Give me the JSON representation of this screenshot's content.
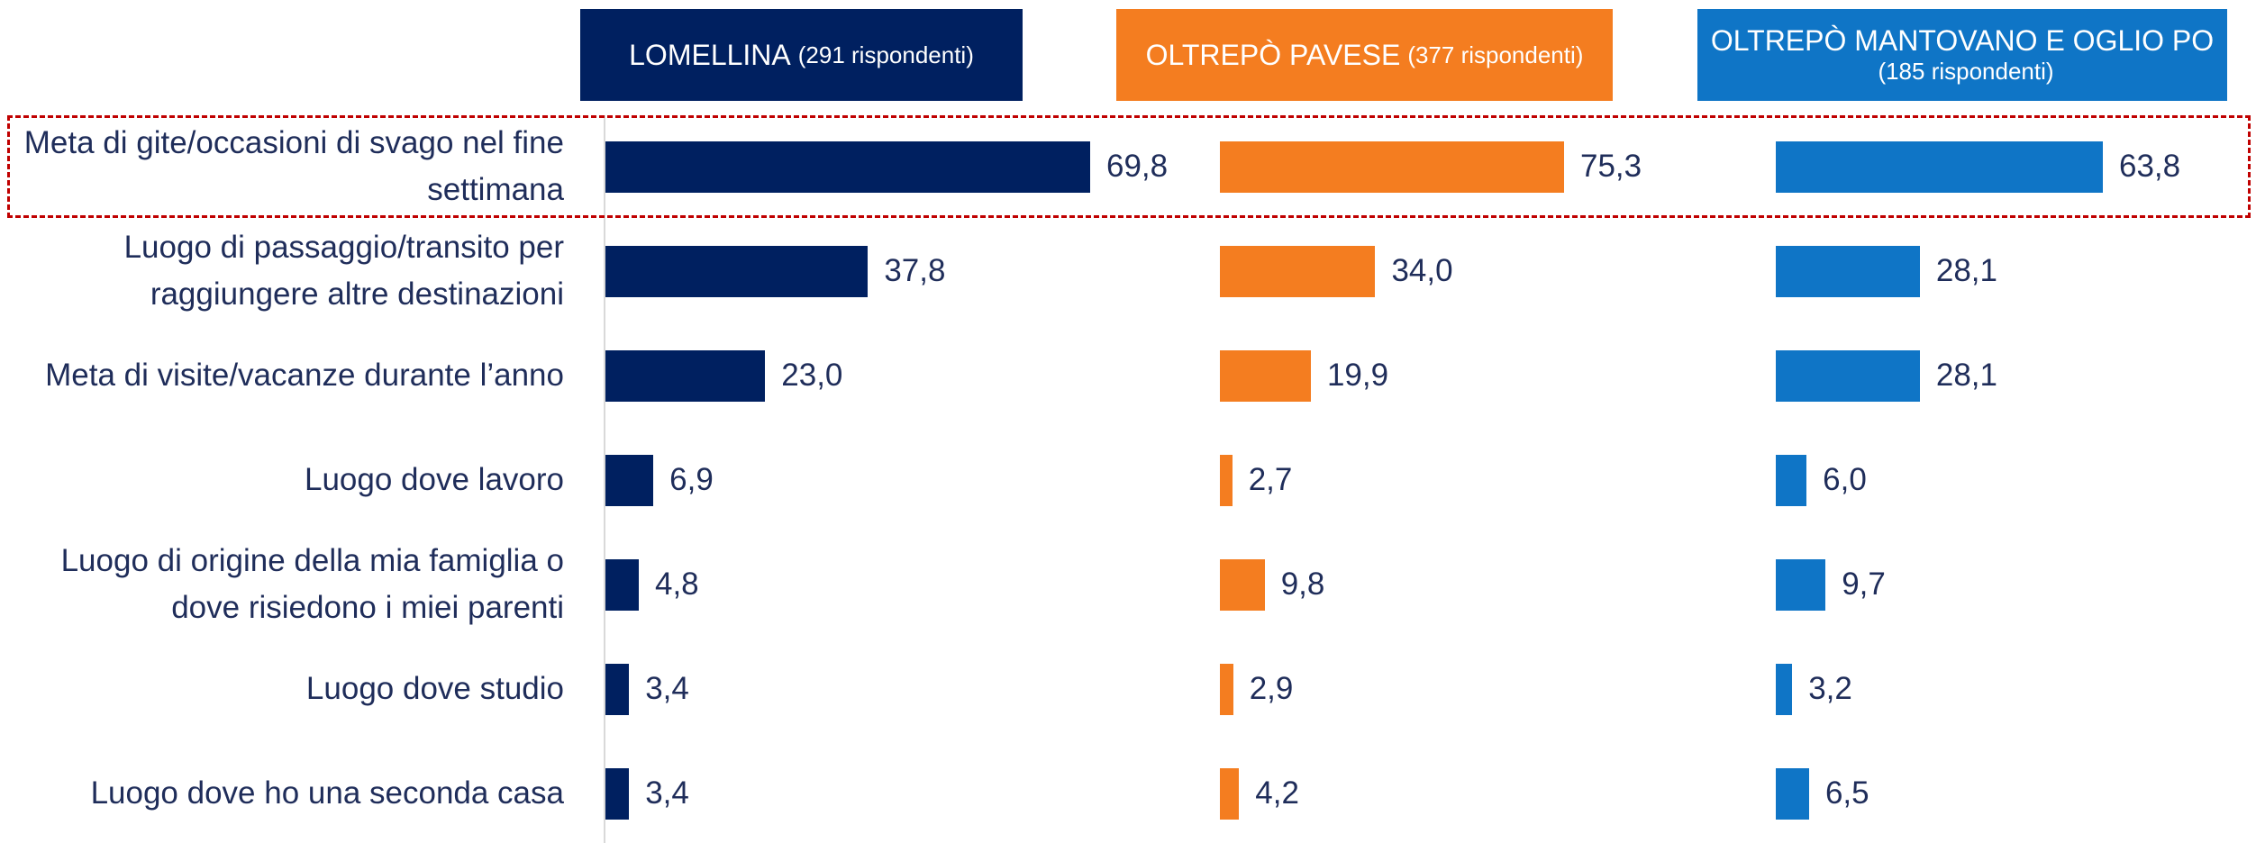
{
  "chart_data": {
    "type": "bar",
    "orientation": "horizontal",
    "categories": [
      "Meta di gite/occasioni di svago nel fine settimana",
      "Luogo di passaggio/transito per raggiungere altre destinazioni",
      "Meta di visite/vacanze durante l’anno",
      "Luogo dove lavoro",
      "Luogo di origine della mia famiglia o dove risiedono i miei parenti",
      "Luogo dove studio",
      "Luogo dove ho una seconda casa"
    ],
    "series": [
      {
        "name": "LOMELLINA",
        "note": "(291 rispondenti)",
        "color": "#002060",
        "values": [
          69.8,
          37.8,
          23.0,
          6.9,
          4.8,
          3.4,
          3.4
        ],
        "value_labels": [
          "69,8",
          "37,8",
          "23,0",
          "6,9",
          "4,8",
          "3,4",
          "3,4"
        ]
      },
      {
        "name": "OLTREPÒ PAVESE",
        "note": "(377 rispondenti)",
        "color": "#f47d20",
        "values": [
          75.3,
          34.0,
          19.9,
          2.7,
          9.8,
          2.9,
          4.2
        ],
        "value_labels": [
          "75,3",
          "34,0",
          "19,9",
          "2,7",
          "9,8",
          "2,9",
          "4,2"
        ]
      },
      {
        "name": "OLTREPÒ MANTOVANO E OGLIO PO",
        "note": "(185 rispondenti)",
        "color": "#0f75c6",
        "values": [
          63.8,
          28.1,
          28.1,
          6.0,
          9.7,
          3.2,
          6.5
        ],
        "value_labels": [
          "63,8",
          "28,1",
          "28,1",
          "6,0",
          "9,7",
          "3,2",
          "6,5"
        ]
      }
    ]
  }
}
